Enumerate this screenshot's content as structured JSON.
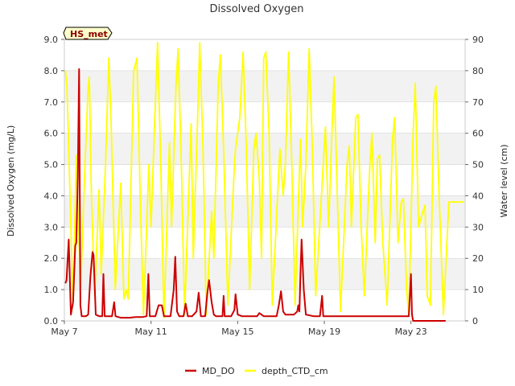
{
  "chart_data": {
    "type": "line",
    "title": "Dissolved Oxygen",
    "badge": "HS_met",
    "xlabel": "",
    "ylabel": "Dissolved Oxygen (mg/L)",
    "y2label": "Water level (cm)",
    "xlim": [
      0,
      18.5
    ],
    "ylim": [
      0,
      9
    ],
    "y2lim": [
      0,
      90
    ],
    "xticks": [
      {
        "value": 0,
        "label": "May 7"
      },
      {
        "value": 4,
        "label": "May 11"
      },
      {
        "value": 8,
        "label": "May 15"
      },
      {
        "value": 12,
        "label": "May 19"
      },
      {
        "value": 16,
        "label": "May 23"
      }
    ],
    "yticks": [
      "0.0",
      "1.0",
      "2.0",
      "3.0",
      "4.0",
      "5.0",
      "6.0",
      "7.0",
      "8.0",
      "9.0"
    ],
    "y2ticks": [
      "0",
      "10",
      "20",
      "30",
      "40",
      "50",
      "60",
      "70",
      "80",
      "90"
    ],
    "bands": [
      [
        1,
        2
      ],
      [
        3,
        4
      ],
      [
        5,
        6
      ],
      [
        7,
        8
      ]
    ],
    "colors": {
      "md_do": "#cc0000",
      "depth": "#ffff00",
      "band": "#f2f2f2",
      "grid": "#dddddd",
      "frame": "#cccccc",
      "badge_fill": "#ffffcc"
    },
    "series": [
      {
        "name": "MD_DO",
        "axis": "left",
        "color": "#cc0000",
        "points": [
          [
            0.05,
            1.2
          ],
          [
            0.1,
            1.3
          ],
          [
            0.2,
            2.6
          ],
          [
            0.3,
            0.2
          ],
          [
            0.4,
            0.6
          ],
          [
            0.5,
            2.4
          ],
          [
            0.55,
            2.5
          ],
          [
            0.62,
            4.6
          ],
          [
            0.68,
            8.05
          ],
          [
            0.74,
            0.5
          ],
          [
            0.8,
            0.15
          ],
          [
            1.0,
            0.15
          ],
          [
            1.1,
            0.2
          ],
          [
            1.2,
            1.4
          ],
          [
            1.3,
            2.2
          ],
          [
            1.35,
            2.1
          ],
          [
            1.45,
            0.2
          ],
          [
            1.6,
            0.15
          ],
          [
            1.75,
            0.15
          ],
          [
            1.8,
            1.5
          ],
          [
            1.86,
            0.15
          ],
          [
            2.0,
            0.15
          ],
          [
            2.2,
            0.15
          ],
          [
            2.3,
            0.6
          ],
          [
            2.36,
            0.15
          ],
          [
            2.6,
            0.1
          ],
          [
            3.0,
            0.1
          ],
          [
            3.3,
            0.12
          ],
          [
            3.6,
            0.12
          ],
          [
            3.8,
            0.15
          ],
          [
            3.88,
            1.5
          ],
          [
            3.94,
            0.15
          ],
          [
            4.2,
            0.15
          ],
          [
            4.35,
            0.5
          ],
          [
            4.5,
            0.5
          ],
          [
            4.6,
            0.15
          ],
          [
            4.9,
            0.15
          ],
          [
            5.05,
            1.0
          ],
          [
            5.12,
            2.05
          ],
          [
            5.2,
            0.3
          ],
          [
            5.3,
            0.15
          ],
          [
            5.5,
            0.15
          ],
          [
            5.6,
            0.55
          ],
          [
            5.7,
            0.15
          ],
          [
            5.9,
            0.15
          ],
          [
            6.1,
            0.3
          ],
          [
            6.2,
            0.9
          ],
          [
            6.3,
            0.15
          ],
          [
            6.5,
            0.15
          ],
          [
            6.6,
            0.9
          ],
          [
            6.68,
            1.3
          ],
          [
            6.8,
            0.6
          ],
          [
            6.9,
            0.2
          ],
          [
            7.0,
            0.15
          ],
          [
            7.3,
            0.15
          ],
          [
            7.35,
            0.8
          ],
          [
            7.4,
            0.15
          ],
          [
            7.7,
            0.15
          ],
          [
            7.85,
            0.35
          ],
          [
            7.9,
            0.85
          ],
          [
            8.0,
            0.2
          ],
          [
            8.2,
            0.15
          ],
          [
            8.5,
            0.15
          ],
          [
            8.9,
            0.15
          ],
          [
            9.0,
            0.25
          ],
          [
            9.2,
            0.15
          ],
          [
            9.5,
            0.15
          ],
          [
            9.8,
            0.15
          ],
          [
            9.9,
            0.5
          ],
          [
            10.0,
            0.95
          ],
          [
            10.1,
            0.3
          ],
          [
            10.2,
            0.2
          ],
          [
            10.6,
            0.2
          ],
          [
            10.75,
            0.3
          ],
          [
            10.8,
            0.5
          ],
          [
            10.85,
            0.3
          ],
          [
            10.9,
            1.5
          ],
          [
            10.95,
            2.6
          ],
          [
            11.05,
            1.0
          ],
          [
            11.15,
            0.2
          ],
          [
            11.5,
            0.15
          ],
          [
            11.8,
            0.15
          ],
          [
            11.9,
            0.8
          ],
          [
            11.95,
            0.15
          ],
          [
            12.5,
            0.15
          ],
          [
            13.0,
            0.15
          ],
          [
            13.5,
            0.15
          ],
          [
            14.0,
            0.15
          ],
          [
            14.5,
            0.15
          ],
          [
            15.0,
            0.15
          ],
          [
            15.5,
            0.15
          ],
          [
            15.9,
            0.15
          ],
          [
            16.0,
            1.5
          ],
          [
            16.05,
            0.2
          ],
          [
            16.1,
            0.0
          ],
          [
            17.6,
            0.0
          ]
        ]
      },
      {
        "name": "depth_CTD_cm",
        "axis": "right",
        "color": "#ffff00",
        "points": [
          [
            0.05,
            80
          ],
          [
            0.12,
            75
          ],
          [
            0.3,
            30
          ],
          [
            0.4,
            5
          ],
          [
            0.55,
            53
          ],
          [
            0.6,
            40
          ],
          [
            0.75,
            10
          ],
          [
            0.95,
            50
          ],
          [
            1.1,
            75
          ],
          [
            1.15,
            78
          ],
          [
            1.25,
            40
          ],
          [
            1.4,
            8
          ],
          [
            1.6,
            42
          ],
          [
            1.7,
            15
          ],
          [
            1.9,
            50
          ],
          [
            2.05,
            84
          ],
          [
            2.15,
            65
          ],
          [
            2.35,
            10
          ],
          [
            2.6,
            44
          ],
          [
            2.75,
            7
          ],
          [
            2.85,
            10
          ],
          [
            2.95,
            7
          ],
          [
            3.2,
            80
          ],
          [
            3.35,
            84
          ],
          [
            3.5,
            40
          ],
          [
            3.65,
            2
          ],
          [
            3.9,
            50
          ],
          [
            4.0,
            30
          ],
          [
            4.15,
            60
          ],
          [
            4.3,
            89
          ],
          [
            4.45,
            50
          ],
          [
            4.6,
            1
          ],
          [
            4.85,
            57
          ],
          [
            4.95,
            30
          ],
          [
            5.15,
            75
          ],
          [
            5.25,
            87
          ],
          [
            5.4,
            50
          ],
          [
            5.55,
            2
          ],
          [
            5.85,
            63
          ],
          [
            5.95,
            20
          ],
          [
            6.15,
            65
          ],
          [
            6.25,
            89
          ],
          [
            6.4,
            55
          ],
          [
            6.55,
            2
          ],
          [
            6.8,
            35
          ],
          [
            6.9,
            20
          ],
          [
            7.1,
            75
          ],
          [
            7.2,
            85
          ],
          [
            7.35,
            55
          ],
          [
            7.55,
            5
          ],
          [
            7.85,
            50
          ],
          [
            7.9,
            55
          ],
          [
            8.1,
            65
          ],
          [
            8.25,
            86
          ],
          [
            8.4,
            55
          ],
          [
            8.55,
            10
          ],
          [
            8.75,
            55
          ],
          [
            8.85,
            60
          ],
          [
            9.0,
            45
          ],
          [
            9.1,
            20
          ],
          [
            9.2,
            84
          ],
          [
            9.3,
            86
          ],
          [
            9.45,
            60
          ],
          [
            9.6,
            5
          ],
          [
            9.95,
            55
          ],
          [
            10.1,
            40
          ],
          [
            10.2,
            50
          ],
          [
            10.35,
            86
          ],
          [
            10.5,
            50
          ],
          [
            10.65,
            5
          ],
          [
            10.9,
            58
          ],
          [
            11.0,
            30
          ],
          [
            11.15,
            50
          ],
          [
            11.3,
            87
          ],
          [
            11.45,
            55
          ],
          [
            11.6,
            8
          ],
          [
            11.95,
            50
          ],
          [
            12.05,
            62
          ],
          [
            12.2,
            30
          ],
          [
            12.35,
            60
          ],
          [
            12.45,
            78
          ],
          [
            12.6,
            40
          ],
          [
            12.75,
            3
          ],
          [
            13.05,
            50
          ],
          [
            13.15,
            56
          ],
          [
            13.25,
            30
          ],
          [
            13.45,
            65
          ],
          [
            13.55,
            66
          ],
          [
            13.7,
            30
          ],
          [
            13.85,
            8
          ],
          [
            14.1,
            50
          ],
          [
            14.2,
            60
          ],
          [
            14.35,
            25
          ],
          [
            14.45,
            52
          ],
          [
            14.55,
            53
          ],
          [
            14.7,
            25
          ],
          [
            14.9,
            5
          ],
          [
            15.15,
            58
          ],
          [
            15.25,
            65
          ],
          [
            15.4,
            25
          ],
          [
            15.55,
            38
          ],
          [
            15.65,
            39
          ],
          [
            15.8,
            10
          ],
          [
            15.9,
            2
          ],
          [
            16.1,
            60
          ],
          [
            16.2,
            76
          ],
          [
            16.35,
            30
          ],
          [
            16.55,
            35
          ],
          [
            16.65,
            37
          ],
          [
            16.75,
            8
          ],
          [
            16.9,
            5
          ],
          [
            17.05,
            70
          ],
          [
            17.15,
            75
          ],
          [
            17.3,
            40
          ],
          [
            17.5,
            2
          ],
          [
            17.75,
            38
          ],
          [
            18.0,
            38
          ],
          [
            18.45,
            38
          ]
        ]
      }
    ],
    "legend": [
      {
        "label": "MD_DO",
        "color": "#cc0000"
      },
      {
        "label": "depth_CTD_cm",
        "color": "#ffff00"
      }
    ]
  }
}
